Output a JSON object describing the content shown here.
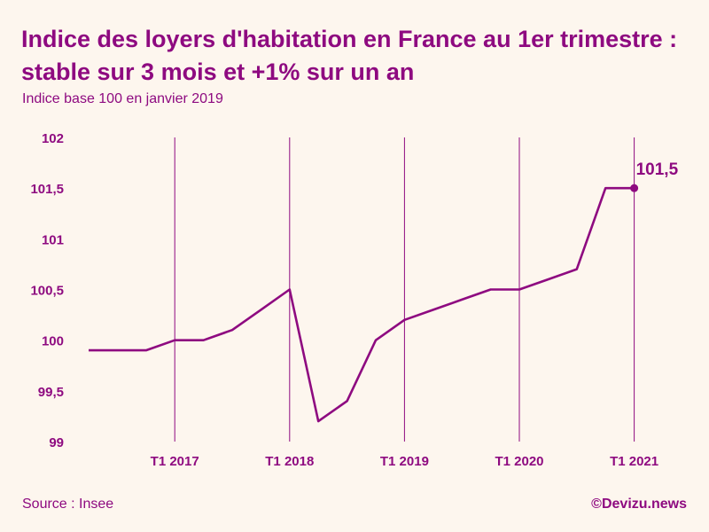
{
  "colors": {
    "accent": "#8e0a80",
    "background": "#fdf6ee"
  },
  "header": {
    "title": "Indice des loyers d'habitation en France au 1er trimestre : stable sur 3 mois et +1% sur un an",
    "subtitle": "Indice base 100 en janvier 2019"
  },
  "footer": {
    "source": "Source : Insee",
    "credit": "©Devizu.news"
  },
  "chart_data": {
    "type": "line",
    "title": "Indice des loyers d'habitation en France au 1er trimestre : stable sur 3 mois et +1% sur un an",
    "subtitle": "Indice base 100 en janvier 2019",
    "xlabel": "",
    "ylabel": "",
    "ylim": [
      99,
      102
    ],
    "yticks": [
      {
        "value": 102,
        "label": "102"
      },
      {
        "value": 101.5,
        "label": "101,5"
      },
      {
        "value": 101,
        "label": "101"
      },
      {
        "value": 100.5,
        "label": "100,5"
      },
      {
        "value": 100,
        "label": "100"
      },
      {
        "value": 99.5,
        "label": "99,5"
      },
      {
        "value": 99,
        "label": "99"
      }
    ],
    "xlim": [
      "T1 2016",
      "T2 2021"
    ],
    "xticks": [
      "T1 2017",
      "T1 2018",
      "T1 2019",
      "T1 2020",
      "T1 2021"
    ],
    "grid": "vertical lines at T1 of each year",
    "legend": "none",
    "series": [
      {
        "x": [
          "T2 2016",
          "T3 2016",
          "T4 2016",
          "T1 2017",
          "T2 2017",
          "T3 2017",
          "T4 2017",
          "T1 2018",
          "T2 2018",
          "T3 2018",
          "T4 2018",
          "T1 2019",
          "T2 2019",
          "T3 2019",
          "T4 2019",
          "T1 2020",
          "T2 2020",
          "T3 2020",
          "T4 2020",
          "T1 2021"
        ],
        "values": [
          99.9,
          99.9,
          99.9,
          100.0,
          100.0,
          100.1,
          100.3,
          100.5,
          99.2,
          99.4,
          100.0,
          100.2,
          100.3,
          100.4,
          100.5,
          100.5,
          100.6,
          100.7,
          101.5,
          101.5
        ]
      }
    ],
    "annotations": [
      {
        "x": "T1 2021",
        "y": 101.5,
        "text": "101,5"
      }
    ]
  }
}
